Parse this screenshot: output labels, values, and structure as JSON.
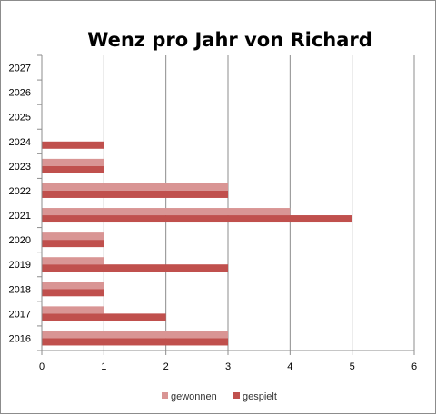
{
  "chart_data": {
    "type": "bar",
    "orientation": "horizontal",
    "title": "Wenz pro Jahr von Richard",
    "xlabel": "",
    "ylabel": "",
    "categories": [
      "2016",
      "2017",
      "2018",
      "2019",
      "2020",
      "2021",
      "2022",
      "2023",
      "2024",
      "2025",
      "2026",
      "2027"
    ],
    "series": [
      {
        "name": "gewonnen",
        "color": "#D99594",
        "values": [
          3,
          1,
          1,
          1,
          1,
          4,
          3,
          1,
          0,
          0,
          0,
          0
        ]
      },
      {
        "name": "gespielt",
        "color": "#C0504D",
        "values": [
          3,
          2,
          1,
          3,
          1,
          5,
          3,
          1,
          1,
          0,
          0,
          0
        ]
      }
    ],
    "xlim": [
      0,
      6
    ],
    "xticks": [
      "0",
      "1",
      "2",
      "3",
      "4",
      "5",
      "6"
    ],
    "grid": true,
    "legend_position": "bottom"
  }
}
